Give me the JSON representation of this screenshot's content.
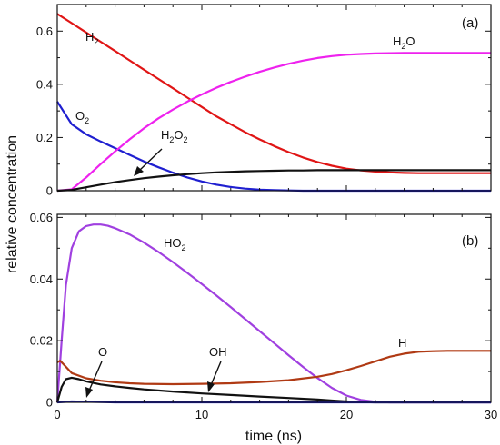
{
  "chart_data": [
    {
      "type": "line",
      "panel_label": "(a)",
      "xlim": [
        0,
        30
      ],
      "ylim": [
        0,
        0.7
      ],
      "yticks": [
        "0",
        "0.2",
        "0.4",
        "0.6"
      ],
      "xticks": [
        "0",
        "10",
        "20",
        "30"
      ],
      "series": [
        {
          "label": "H",
          "sub": "2",
          "post": "",
          "color": "#e01515",
          "x": [
            0,
            1,
            2,
            3,
            4,
            5,
            6,
            7,
            8,
            9,
            10,
            11,
            12,
            13,
            14,
            15,
            16,
            17,
            18,
            19,
            20,
            21,
            22,
            23,
            24,
            25,
            26,
            27,
            28,
            29,
            30
          ],
          "y": [
            0.665,
            0.63,
            0.595,
            0.56,
            0.525,
            0.49,
            0.455,
            0.42,
            0.385,
            0.35,
            0.315,
            0.28,
            0.25,
            0.22,
            0.193,
            0.168,
            0.145,
            0.125,
            0.108,
            0.094,
            0.083,
            0.076,
            0.072,
            0.069,
            0.067,
            0.066,
            0.066,
            0.066,
            0.066,
            0.066,
            0.066
          ]
        },
        {
          "label": "O",
          "sub": "2",
          "post": "",
          "color": "#1f1fd0",
          "x": [
            0,
            1,
            2,
            3,
            4,
            5,
            6,
            7,
            8,
            9,
            10,
            11,
            12,
            13,
            14,
            15,
            16,
            17,
            18,
            19,
            20,
            21,
            22,
            23,
            24,
            25,
            26,
            27,
            28,
            29,
            30
          ],
          "y": [
            0.335,
            0.25,
            0.212,
            0.185,
            0.16,
            0.135,
            0.11,
            0.088,
            0.068,
            0.05,
            0.035,
            0.023,
            0.014,
            0.008,
            0.004,
            0.002,
            0.001,
            0,
            0,
            0,
            0,
            0,
            0,
            0,
            0,
            0,
            0,
            0,
            0,
            0,
            0
          ]
        },
        {
          "label": "H",
          "sub": "2",
          "post": "O",
          "color": "#ee22ee",
          "x": [
            0,
            1,
            2,
            3,
            4,
            5,
            6,
            7,
            8,
            9,
            10,
            11,
            12,
            13,
            14,
            15,
            16,
            17,
            18,
            19,
            20,
            21,
            22,
            23,
            24,
            25,
            26,
            27,
            28,
            29,
            30
          ],
          "y": [
            0,
            0.005,
            0.05,
            0.1,
            0.148,
            0.193,
            0.235,
            0.272,
            0.305,
            0.335,
            0.362,
            0.387,
            0.409,
            0.429,
            0.447,
            0.463,
            0.477,
            0.489,
            0.499,
            0.506,
            0.511,
            0.514,
            0.516,
            0.517,
            0.518,
            0.518,
            0.518,
            0.518,
            0.518,
            0.518,
            0.518
          ]
        },
        {
          "label": "H",
          "sub": "2",
          "post": "O",
          "sub2": "2",
          "color": "#111111",
          "x": [
            0,
            1,
            2,
            3,
            4,
            5,
            6,
            7,
            8,
            9,
            10,
            11,
            12,
            13,
            14,
            15,
            16,
            17,
            18,
            19,
            20,
            21,
            22,
            23,
            24,
            25,
            26,
            27,
            28,
            29,
            30
          ],
          "y": [
            0,
            0.003,
            0.013,
            0.023,
            0.032,
            0.04,
            0.047,
            0.053,
            0.058,
            0.062,
            0.066,
            0.069,
            0.071,
            0.073,
            0.074,
            0.075,
            0.076,
            0.076,
            0.077,
            0.077,
            0.077,
            0.077,
            0.077,
            0.077,
            0.077,
            0.077,
            0.077,
            0.077,
            0.077,
            0.077,
            0.077
          ]
        }
      ]
    },
    {
      "type": "line",
      "panel_label": "(b)",
      "xlim": [
        0,
        30
      ],
      "ylim": [
        0,
        0.061
      ],
      "yticks": [
        "0",
        "0.02",
        "0.04",
        "0.06"
      ],
      "xticks": [
        "0",
        "10",
        "20",
        "30"
      ],
      "xlabel": "time (ns)",
      "series": [
        {
          "label": "HO",
          "sub": "2",
          "post": "",
          "color": "#a040e0",
          "x": [
            0,
            0.3,
            0.6,
            1,
            1.5,
            2,
            2.5,
            3,
            3.5,
            4,
            5,
            6,
            7,
            8,
            9,
            10,
            11,
            12,
            13,
            14,
            15,
            16,
            17,
            18,
            19,
            20,
            21,
            22,
            23,
            24,
            25,
            26,
            27,
            28,
            29,
            30
          ],
          "y": [
            0,
            0.02,
            0.038,
            0.05,
            0.0555,
            0.0572,
            0.0577,
            0.0577,
            0.0573,
            0.0565,
            0.0545,
            0.0518,
            0.0488,
            0.0455,
            0.042,
            0.0384,
            0.0347,
            0.0309,
            0.027,
            0.0231,
            0.0192,
            0.0153,
            0.0115,
            0.0079,
            0.0047,
            0.0022,
            0.0008,
            0.0002,
            0,
            0,
            0,
            0,
            0,
            0,
            0,
            0
          ]
        },
        {
          "label": "H",
          "sub": "",
          "post": "",
          "color": "#b03a14",
          "x": [
            0,
            0.2,
            0.5,
            1,
            2,
            3,
            4,
            5,
            6,
            8,
            10,
            12,
            14,
            16,
            18,
            19,
            20,
            21,
            22,
            23,
            24,
            25,
            26,
            27,
            28,
            29,
            30
          ],
          "y": [
            0.013,
            0.0135,
            0.012,
            0.0095,
            0.0078,
            0.007,
            0.0065,
            0.0062,
            0.006,
            0.0059,
            0.006,
            0.0062,
            0.0066,
            0.0072,
            0.0083,
            0.0092,
            0.0104,
            0.0118,
            0.0133,
            0.0148,
            0.0158,
            0.0164,
            0.0166,
            0.0167,
            0.0167,
            0.0167,
            0.0167
          ]
        },
        {
          "label": "OH",
          "sub": "",
          "post": "",
          "color": "#111111",
          "x": [
            0,
            0.3,
            0.6,
            1,
            1.5,
            2,
            3,
            4,
            5,
            6,
            8,
            10,
            12,
            14,
            16,
            18,
            19,
            20,
            21,
            22,
            23,
            24,
            25,
            26,
            27,
            28,
            29,
            30
          ],
          "y": [
            0,
            0.005,
            0.0075,
            0.008,
            0.0075,
            0.0068,
            0.0058,
            0.0052,
            0.0047,
            0.0042,
            0.0035,
            0.0029,
            0.0024,
            0.0019,
            0.0014,
            0.0009,
            0.0006,
            0.0003,
            0.0001,
            0,
            0,
            0,
            0,
            0,
            0,
            0,
            0,
            0
          ]
        },
        {
          "label": "O",
          "sub": "",
          "post": "",
          "color": "#1f1fd0",
          "x": [
            0,
            1,
            2,
            3,
            4,
            5,
            10,
            15,
            20,
            25,
            30
          ],
          "y": [
            0,
            0.0003,
            0.0002,
            0.0001,
            0,
            0,
            0,
            0,
            0,
            0,
            0
          ]
        }
      ]
    }
  ],
  "ylabel": "relative concentration"
}
